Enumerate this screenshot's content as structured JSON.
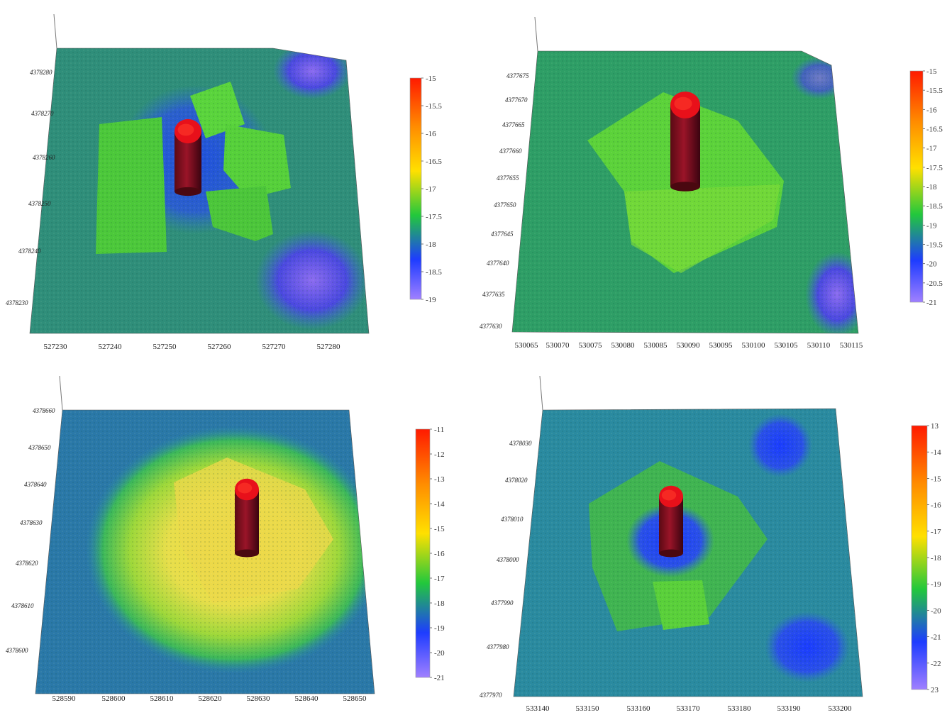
{
  "chart_data": [
    {
      "type": "heatmap",
      "subtype": "3d-bathymetric-surface",
      "title": "",
      "xlabel": "",
      "ylabel": "",
      "x_ticks": [
        "527230",
        "527240",
        "527250",
        "527260",
        "527270",
        "527280"
      ],
      "y_ticks": [
        "4378280",
        "4378270",
        "4378260",
        "4378250",
        "4378240",
        "4378230"
      ],
      "colorbar": {
        "ticks": [
          "-15",
          "-15.5",
          "-16",
          "-16.5",
          "-17",
          "-17.5",
          "-18",
          "-18.5",
          "-19"
        ],
        "range": [
          -19,
          -15
        ],
        "colors": [
          "#ff1a00",
          "#ff8c00",
          "#ffe000",
          "#22c83c",
          "#1e3cff",
          "#a080ff"
        ]
      }
    },
    {
      "type": "heatmap",
      "subtype": "3d-bathymetric-surface",
      "title": "",
      "xlabel": "",
      "ylabel": "",
      "x_ticks": [
        "530065",
        "530070",
        "530075",
        "530080",
        "530085",
        "530090",
        "530095",
        "530100",
        "530105",
        "530110",
        "530115"
      ],
      "y_ticks": [
        "4377675",
        "4377670",
        "4377665",
        "4377660",
        "4377655",
        "4377650",
        "4377645",
        "4377640",
        "4377635",
        "4377630"
      ],
      "colorbar": {
        "ticks": [
          "-15",
          "-15.5",
          "-16",
          "-16.5",
          "-17",
          "-17.5",
          "-18",
          "-18.5",
          "-19",
          "-19.5",
          "-20",
          "-20.5",
          "-21"
        ],
        "range": [
          -21,
          -15
        ],
        "colors": [
          "#ff1a00",
          "#ff8c00",
          "#ffe000",
          "#22c83c",
          "#1e3cff",
          "#a080ff"
        ]
      }
    },
    {
      "type": "heatmap",
      "subtype": "3d-bathymetric-surface",
      "title": "",
      "xlabel": "",
      "ylabel": "",
      "x_ticks": [
        "528590",
        "528600",
        "528610",
        "528620",
        "528630",
        "528640",
        "528650"
      ],
      "y_ticks": [
        "4378660",
        "4378650",
        "4378640",
        "4378630",
        "4378620",
        "4378610",
        "4378600"
      ],
      "colorbar": {
        "ticks": [
          "-11",
          "-12",
          "-13",
          "-14",
          "-15",
          "-16",
          "-17",
          "-18",
          "-19",
          "-20",
          "-21"
        ],
        "range": [
          -21,
          -11
        ],
        "colors": [
          "#ff1a00",
          "#ff8c00",
          "#ffe000",
          "#22c83c",
          "#1e3cff",
          "#a080ff"
        ]
      }
    },
    {
      "type": "heatmap",
      "subtype": "3d-bathymetric-surface",
      "title": "",
      "xlabel": "",
      "ylabel": "",
      "x_ticks": [
        "533140",
        "533150",
        "533160",
        "533170",
        "533180",
        "533190",
        "533200"
      ],
      "y_ticks": [
        "4378030",
        "4378020",
        "4378010",
        "4378000",
        "4377990",
        "4377980",
        "4377970"
      ],
      "colorbar": {
        "ticks": [
          "13",
          "-14",
          "-15",
          "-16",
          "-17",
          "-18",
          "-19",
          "-20",
          "-21",
          "-22",
          "23"
        ],
        "range": [
          -23,
          -13
        ],
        "colors": [
          "#ff1a00",
          "#ff8c00",
          "#ffe000",
          "#22c83c",
          "#1e3cff",
          "#a080ff"
        ]
      }
    }
  ]
}
